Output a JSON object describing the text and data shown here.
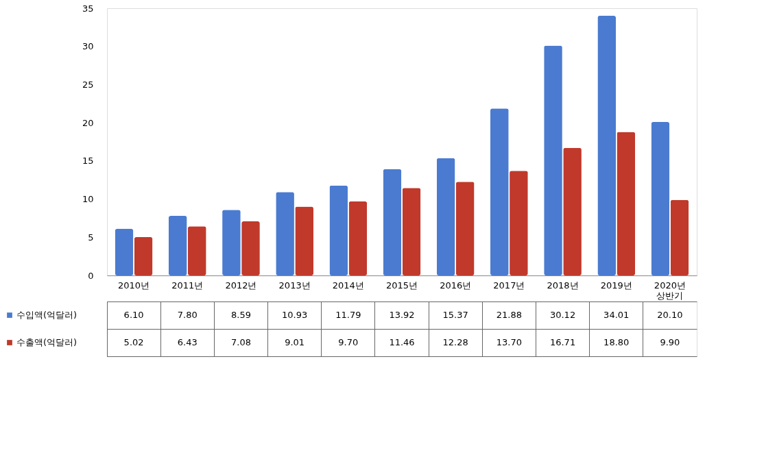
{
  "chart_data": {
    "type": "bar",
    "categories": [
      "2010년",
      "2011년",
      "2012년",
      "2013년",
      "2014년",
      "2015년",
      "2016년",
      "2017년",
      "2018년",
      "2019년",
      "2020년 상반기"
    ],
    "series": [
      {
        "name": "수입액(억달러)",
        "color": "#4a7bd0",
        "values": [
          6.1,
          7.8,
          8.59,
          10.93,
          11.79,
          13.92,
          15.37,
          21.88,
          30.12,
          34.01,
          20.1
        ],
        "value_labels": [
          "6.10",
          "7.80",
          "8.59",
          "10.93",
          "11.79",
          "13.92",
          "15.37",
          "21.88",
          "30.12",
          "34.01",
          "20.10"
        ]
      },
      {
        "name": "수출액(억달러)",
        "color": "#c0392b",
        "values": [
          5.02,
          6.43,
          7.08,
          9.01,
          9.7,
          11.46,
          12.28,
          13.7,
          16.71,
          18.8,
          9.9
        ],
        "value_labels": [
          "5.02",
          "6.43",
          "7.08",
          "9.01",
          "9.70",
          "11.46",
          "12.28",
          "13.70",
          "16.71",
          "18.80",
          "9.90"
        ]
      }
    ],
    "ylim": [
      0,
      35
    ],
    "yticks": [
      0,
      5,
      10,
      15,
      20,
      25,
      30,
      35
    ],
    "legend": "bottom"
  }
}
